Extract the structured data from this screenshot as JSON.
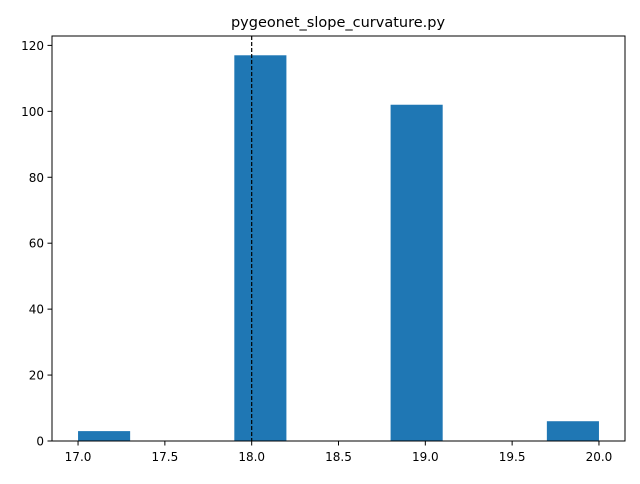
{
  "chart_data": {
    "type": "bar",
    "title": "pygeonet_slope_curvature.py",
    "xlabel": "",
    "ylabel": "",
    "xlim": [
      16.85,
      20.15
    ],
    "ylim": [
      0,
      122.85
    ],
    "bin_width": 0.3,
    "bars": [
      {
        "x0": 17.0,
        "x1": 17.3,
        "count": 3
      },
      {
        "x0": 17.3,
        "x1": 17.6,
        "count": 0
      },
      {
        "x0": 17.6,
        "x1": 17.9,
        "count": 0
      },
      {
        "x0": 17.9,
        "x1": 18.2,
        "count": 117
      },
      {
        "x0": 18.2,
        "x1": 18.5,
        "count": 0
      },
      {
        "x0": 18.5,
        "x1": 18.8,
        "count": 0
      },
      {
        "x0": 18.8,
        "x1": 19.1,
        "count": 102
      },
      {
        "x0": 19.1,
        "x1": 19.4,
        "count": 0
      },
      {
        "x0": 19.4,
        "x1": 19.7,
        "count": 0
      },
      {
        "x0": 19.7,
        "x1": 20.0,
        "count": 6
      }
    ],
    "vline": {
      "x": 18.0,
      "style": "dashed",
      "color": "#000000"
    },
    "xticks": [
      17.0,
      17.5,
      18.0,
      18.5,
      19.0,
      19.5,
      20.0
    ],
    "xtick_labels": [
      "17.0",
      "17.5",
      "18.0",
      "18.5",
      "19.0",
      "19.5",
      "20.0"
    ],
    "yticks": [
      0,
      20,
      40,
      60,
      80,
      100,
      120
    ],
    "ytick_labels": [
      "0",
      "20",
      "40",
      "60",
      "80",
      "100",
      "120"
    ],
    "bar_color": "#1f77b4",
    "grid": false,
    "legend": "none"
  }
}
